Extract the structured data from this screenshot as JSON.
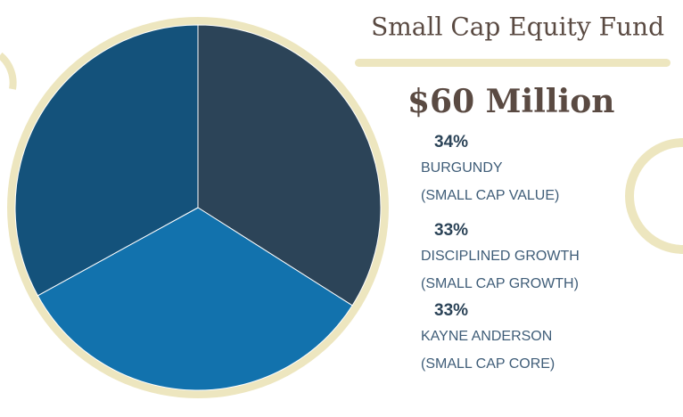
{
  "chart_data": {
    "type": "pie",
    "title": "Small Cap Equity Fund",
    "subtitle": "$60 Million",
    "categories": [
      "BURGUNDY",
      "DISCIPLINED GROWTH",
      "KAYNE ANDERSON"
    ],
    "descriptions": [
      "(SMALL CAP VALUE)",
      "(SMALL CAP GROWTH)",
      "(SMALL CAP CORE)"
    ],
    "values": [
      34,
      33,
      33
    ],
    "value_labels": [
      "34%",
      "33%",
      "33%"
    ],
    "colors": [
      "#2c4458",
      "#1272ad",
      "#14527b"
    ]
  }
}
